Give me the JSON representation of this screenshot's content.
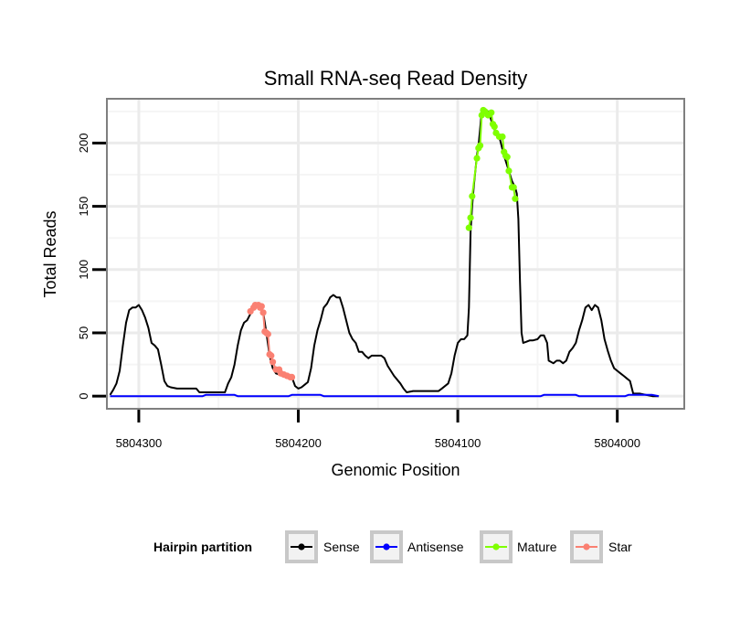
{
  "chart_data": {
    "type": "line",
    "title": "Small RNA-seq Read Density",
    "xlabel": "Genomic Position",
    "ylabel": "Total Reads",
    "x_reversed": true,
    "xlim": [
      5804320,
      5803958
    ],
    "ylim": [
      -10,
      235
    ],
    "x_ticks": [
      5804300,
      5804200,
      5804100,
      5804000
    ],
    "x_tick_labels": [
      "5804300",
      "5804200",
      "5804100",
      "5804000"
    ],
    "y_ticks": [
      0,
      50,
      100,
      150,
      200
    ],
    "y_tick_labels": [
      "0",
      "50",
      "100",
      "150",
      "200"
    ],
    "grid": true,
    "legend": {
      "title": "Hairpin partition",
      "position": "bottom",
      "entries": [
        {
          "label": "Sense",
          "color": "#000000"
        },
        {
          "label": "Antisense",
          "color": "#0000ff"
        },
        {
          "label": "Mature",
          "color": "#7fff00"
        },
        {
          "label": "Star",
          "color": "#fa8072"
        }
      ]
    },
    "series": [
      {
        "name": "Sense",
        "color": "#000000",
        "points": [
          [
            5804318,
            1
          ],
          [
            5804316,
            5
          ],
          [
            5804314,
            10
          ],
          [
            5804312,
            20
          ],
          [
            5804310,
            40
          ],
          [
            5804308,
            58
          ],
          [
            5804306,
            68
          ],
          [
            5804304,
            70
          ],
          [
            5804302,
            70
          ],
          [
            5804300,
            72
          ],
          [
            5804298,
            68
          ],
          [
            5804296,
            62
          ],
          [
            5804294,
            54
          ],
          [
            5804292,
            42
          ],
          [
            5804290,
            40
          ],
          [
            5804288,
            37
          ],
          [
            5804286,
            25
          ],
          [
            5804284,
            12
          ],
          [
            5804282,
            8
          ],
          [
            5804280,
            7
          ],
          [
            5804276,
            6
          ],
          [
            5804272,
            6
          ],
          [
            5804268,
            6
          ],
          [
            5804264,
            6
          ],
          [
            5804262,
            3
          ],
          [
            5804258,
            3
          ],
          [
            5804252,
            3
          ],
          [
            5804246,
            3
          ],
          [
            5804244,
            10
          ],
          [
            5804242,
            15
          ],
          [
            5804240,
            25
          ],
          [
            5804238,
            40
          ],
          [
            5804236,
            52
          ],
          [
            5804234,
            58
          ],
          [
            5804232,
            60
          ],
          [
            5804230,
            65
          ],
          [
            5804228,
            70
          ],
          [
            5804226,
            72
          ],
          [
            5804224,
            72
          ],
          [
            5804222,
            66
          ],
          [
            5804220,
            50
          ],
          [
            5804218,
            32
          ],
          [
            5804216,
            22
          ],
          [
            5804214,
            18
          ],
          [
            5804212,
            17
          ],
          [
            5804210,
            16
          ],
          [
            5804208,
            16
          ],
          [
            5804206,
            15
          ],
          [
            5804204,
            15
          ],
          [
            5804202,
            8
          ],
          [
            5804200,
            6
          ],
          [
            5804198,
            7
          ],
          [
            5804196,
            9
          ],
          [
            5804194,
            11
          ],
          [
            5804192,
            22
          ],
          [
            5804190,
            40
          ],
          [
            5804188,
            52
          ],
          [
            5804186,
            60
          ],
          [
            5804184,
            70
          ],
          [
            5804182,
            73
          ],
          [
            5804180,
            78
          ],
          [
            5804178,
            80
          ],
          [
            5804176,
            78
          ],
          [
            5804174,
            78
          ],
          [
            5804172,
            70
          ],
          [
            5804170,
            60
          ],
          [
            5804168,
            50
          ],
          [
            5804166,
            45
          ],
          [
            5804164,
            42
          ],
          [
            5804162,
            35
          ],
          [
            5804160,
            35
          ],
          [
            5804158,
            32
          ],
          [
            5804156,
            30
          ],
          [
            5804154,
            32
          ],
          [
            5804152,
            32
          ],
          [
            5804148,
            32
          ],
          [
            5804146,
            30
          ],
          [
            5804144,
            24
          ],
          [
            5804140,
            16
          ],
          [
            5804136,
            10
          ],
          [
            5804134,
            6
          ],
          [
            5804132,
            3
          ],
          [
            5804128,
            4
          ],
          [
            5804124,
            4
          ],
          [
            5804118,
            4
          ],
          [
            5804112,
            4
          ],
          [
            5804110,
            6
          ],
          [
            5804106,
            10
          ],
          [
            5804104,
            18
          ],
          [
            5804102,
            32
          ],
          [
            5804100,
            42
          ],
          [
            5804098,
            45
          ],
          [
            5804096,
            45
          ],
          [
            5804094,
            48
          ],
          [
            5804093,
            70
          ],
          [
            5804092,
            130
          ],
          [
            5804091,
            150
          ],
          [
            5804090,
            165
          ],
          [
            5804088,
            190
          ],
          [
            5804087,
            198
          ],
          [
            5804085,
            225
          ],
          [
            5804083,
            225
          ],
          [
            5804081,
            225
          ],
          [
            5804080,
            222
          ],
          [
            5804078,
            214
          ],
          [
            5804076,
            208
          ],
          [
            5804074,
            205
          ],
          [
            5804072,
            195
          ],
          [
            5804071,
            190
          ],
          [
            5804070,
            186
          ],
          [
            5804068,
            178
          ],
          [
            5804066,
            170
          ],
          [
            5804064,
            165
          ],
          [
            5804063,
            160
          ],
          [
            5804062,
            140
          ],
          [
            5804061,
            90
          ],
          [
            5804060,
            50
          ],
          [
            5804059,
            42
          ],
          [
            5804057,
            43
          ],
          [
            5804055,
            44
          ],
          [
            5804053,
            44
          ],
          [
            5804050,
            45
          ],
          [
            5804048,
            48
          ],
          [
            5804046,
            48
          ],
          [
            5804044,
            42
          ],
          [
            5804043,
            28
          ],
          [
            5804040,
            26
          ],
          [
            5804038,
            28
          ],
          [
            5804036,
            28
          ],
          [
            5804034,
            26
          ],
          [
            5804032,
            28
          ],
          [
            5804030,
            35
          ],
          [
            5804028,
            38
          ],
          [
            5804026,
            42
          ],
          [
            5804024,
            52
          ],
          [
            5804022,
            60
          ],
          [
            5804020,
            70
          ],
          [
            5804018,
            72
          ],
          [
            5804016,
            68
          ],
          [
            5804014,
            72
          ],
          [
            5804012,
            70
          ],
          [
            5804010,
            60
          ],
          [
            5804008,
            45
          ],
          [
            5804006,
            36
          ],
          [
            5804004,
            28
          ],
          [
            5804002,
            22
          ],
          [
            5804000,
            20
          ],
          [
            5803998,
            18
          ],
          [
            5803996,
            16
          ],
          [
            5803994,
            14
          ],
          [
            5803992,
            12
          ],
          [
            5803990,
            2
          ],
          [
            5803986,
            2
          ],
          [
            5803982,
            1
          ],
          [
            5803978,
            0
          ],
          [
            5803974,
            0
          ]
        ]
      },
      {
        "name": "Antisense",
        "color": "#0000ff",
        "points": [
          [
            5804318,
            0
          ],
          [
            5804260,
            0
          ],
          [
            5804258,
            1
          ],
          [
            5804240,
            1
          ],
          [
            5804238,
            0
          ],
          [
            5804206,
            0
          ],
          [
            5804204,
            1
          ],
          [
            5804186,
            1
          ],
          [
            5804184,
            0
          ],
          [
            5804048,
            0
          ],
          [
            5804046,
            1
          ],
          [
            5804026,
            1
          ],
          [
            5804024,
            0
          ],
          [
            5803995,
            0
          ],
          [
            5803993,
            1
          ],
          [
            5803978,
            1
          ],
          [
            5803974,
            0
          ]
        ]
      },
      {
        "name": "Mature",
        "color": "#7fff00",
        "points": [
          [
            5804093,
            133
          ],
          [
            5804092,
            141
          ],
          [
            5804091,
            158
          ],
          [
            5804088,
            188
          ],
          [
            5804087,
            196
          ],
          [
            5804086,
            198
          ],
          [
            5804085,
            222
          ],
          [
            5804084,
            226
          ],
          [
            5804083,
            225
          ],
          [
            5804081,
            222
          ],
          [
            5804080,
            223
          ],
          [
            5804079,
            224
          ],
          [
            5804078,
            215
          ],
          [
            5804077,
            213
          ],
          [
            5804076,
            208
          ],
          [
            5804074,
            205
          ],
          [
            5804072,
            205
          ],
          [
            5804071,
            193
          ],
          [
            5804070,
            190
          ],
          [
            5804069,
            189
          ],
          [
            5804068,
            178
          ],
          [
            5804066,
            165
          ],
          [
            5804065,
            165
          ],
          [
            5804064,
            156
          ]
        ]
      },
      {
        "name": "Star",
        "color": "#fa8072",
        "points": [
          [
            5804230,
            67
          ],
          [
            5804228,
            70
          ],
          [
            5804227,
            72
          ],
          [
            5804225,
            72
          ],
          [
            5804224,
            70
          ],
          [
            5804223,
            71
          ],
          [
            5804222,
            66
          ],
          [
            5804221,
            51
          ],
          [
            5804220,
            50
          ],
          [
            5804219,
            49
          ],
          [
            5804218,
            33
          ],
          [
            5804217,
            32
          ],
          [
            5804216,
            27
          ],
          [
            5804214,
            21
          ],
          [
            5804212,
            21
          ],
          [
            5804211,
            18
          ],
          [
            5804209,
            17
          ],
          [
            5804207,
            16
          ],
          [
            5804205,
            15
          ],
          [
            5804204,
            15
          ]
        ]
      }
    ]
  }
}
